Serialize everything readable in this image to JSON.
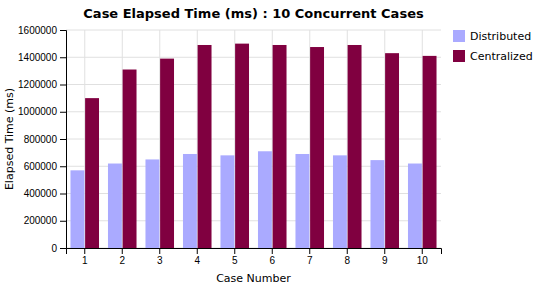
{
  "chart_data": {
    "type": "bar",
    "title": "Case Elapsed Time (ms) : 10 Concurrent Cases",
    "x_label": "Case Number",
    "y_label": "Elapsed Time (ms)",
    "categories": [
      1,
      2,
      3,
      4,
      5,
      6,
      7,
      8,
      9,
      10
    ],
    "series": [
      {
        "name": "Distributed",
        "color": "#aaaaff",
        "values": [
          570000,
          620000,
          650000,
          690000,
          680000,
          710000,
          690000,
          680000,
          645000,
          620000
        ]
      },
      {
        "name": "Centralized",
        "color": "#800040",
        "values": [
          1100000,
          1310000,
          1390000,
          1490000,
          1500000,
          1490000,
          1475000,
          1490000,
          1430000,
          1410000
        ]
      }
    ],
    "ylim": [
      0,
      1600000
    ],
    "yticks": [
      0,
      200000,
      400000,
      600000,
      800000,
      1000000,
      1200000,
      1400000,
      1600000
    ],
    "grid": true,
    "legend": "upper right"
  }
}
